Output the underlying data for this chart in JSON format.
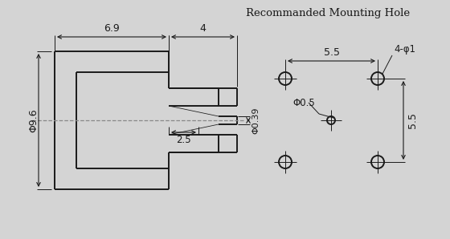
{
  "bg_color": "#d4d4d4",
  "line_color": "#1a1a1a",
  "dash_color": "#888888",
  "title": "Recommanded Mounting Hole",
  "dim_69": "6.9",
  "dim_4": "4",
  "dim_96": "Φ9.6",
  "dim_039": "Φ0.39",
  "dim_25": "2.5",
  "dim_05": "Φ0.5",
  "dim_55_h": "5.5",
  "dim_55_v": "5.5",
  "dim_phi1": "4-φ1"
}
